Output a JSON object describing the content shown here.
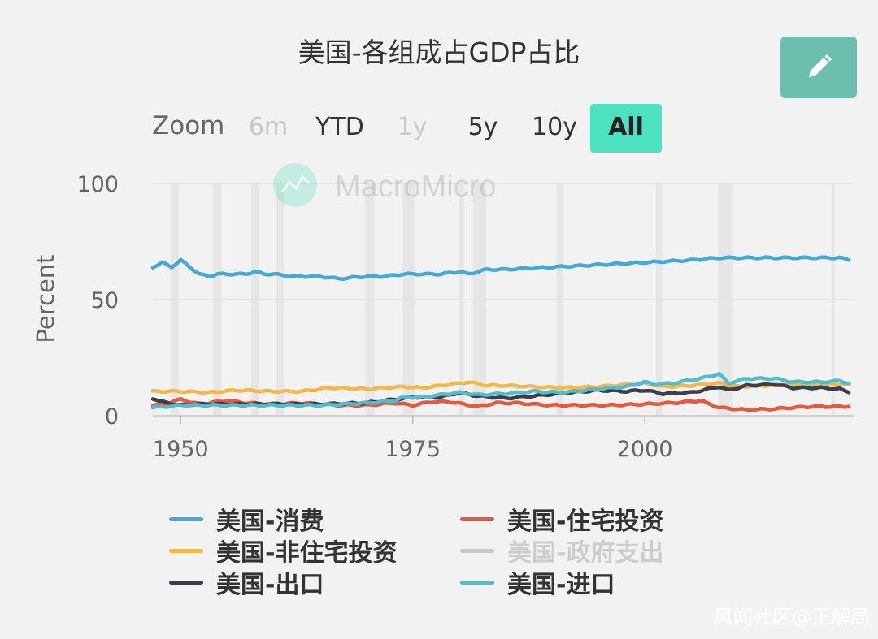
{
  "header": {
    "title": "美国-各组成占GDP占比"
  },
  "toolbar": {
    "edit_icon": "pencil-icon",
    "edit_color": "#6cbfae"
  },
  "zoom": {
    "label": "Zoom",
    "buttons": [
      {
        "label": "6m",
        "state": "disabled"
      },
      {
        "label": "YTD",
        "state": "enabled"
      },
      {
        "label": "1y",
        "state": "disabled"
      },
      {
        "label": "5y",
        "state": "enabled"
      },
      {
        "label": "10y",
        "state": "enabled"
      },
      {
        "label": "All",
        "state": "active"
      }
    ]
  },
  "watermark": {
    "text": "MacroMicro",
    "icon": "macromicro-logo-icon"
  },
  "footer": {
    "credit": "风闻社区@正解局"
  },
  "chart_data": {
    "type": "line",
    "title": "美国-各组成占GDP占比",
    "ylabel": "Percent",
    "xlabel": "",
    "ylim": [
      0,
      100
    ],
    "yticks": [
      "0",
      "50",
      "100"
    ],
    "xlim": [
      1947,
      2022.5
    ],
    "xticks": [
      "1950",
      "1975",
      "2000"
    ],
    "recession_shading": true,
    "legend_position": "bottom",
    "series": [
      {
        "name": "美国-消费",
        "color": "#45a9d6",
        "visible": true,
        "points": [
          [
            1947,
            64
          ],
          [
            1948,
            66
          ],
          [
            1949,
            64
          ],
          [
            1950,
            67
          ],
          [
            1951,
            64
          ],
          [
            1952,
            61
          ],
          [
            1953,
            60
          ],
          [
            1954,
            61
          ],
          [
            1955,
            61
          ],
          [
            1957,
            61
          ],
          [
            1958,
            62
          ],
          [
            1959,
            61
          ],
          [
            1960,
            61
          ],
          [
            1962,
            60
          ],
          [
            1965,
            60
          ],
          [
            1967,
            59
          ],
          [
            1970,
            60
          ],
          [
            1972,
            60
          ],
          [
            1974,
            61
          ],
          [
            1976,
            61
          ],
          [
            1978,
            61
          ],
          [
            1980,
            62
          ],
          [
            1981,
            61
          ],
          [
            1983,
            63
          ],
          [
            1985,
            63
          ],
          [
            1990,
            64
          ],
          [
            1995,
            65
          ],
          [
            2000,
            66
          ],
          [
            2005,
            67
          ],
          [
            2008,
            68
          ],
          [
            2010,
            68
          ],
          [
            2012,
            68
          ],
          [
            2015,
            68
          ],
          [
            2018,
            68
          ],
          [
            2021,
            68
          ],
          [
            2022,
            67
          ]
        ]
      },
      {
        "name": "美国-住宅投资",
        "color": "#e55a3f",
        "visible": true,
        "points": [
          [
            1947,
            4.5
          ],
          [
            1948,
            5
          ],
          [
            1950,
            7
          ],
          [
            1952,
            5
          ],
          [
            1955,
            6.5
          ],
          [
            1957,
            5.5
          ],
          [
            1960,
            5
          ],
          [
            1963,
            5.5
          ],
          [
            1967,
            4.5
          ],
          [
            1970,
            4.5
          ],
          [
            1973,
            5.5
          ],
          [
            1975,
            4.5
          ],
          [
            1977,
            6
          ],
          [
            1979,
            6
          ],
          [
            1982,
            4
          ],
          [
            1984,
            5.5
          ],
          [
            1986,
            5.5
          ],
          [
            1990,
            4.5
          ],
          [
            1993,
            4.5
          ],
          [
            1996,
            4.5
          ],
          [
            2000,
            5
          ],
          [
            2003,
            5.5
          ],
          [
            2006,
            6.5
          ],
          [
            2008,
            3.5
          ],
          [
            2011,
            2.5
          ],
          [
            2014,
            3
          ],
          [
            2018,
            4
          ],
          [
            2022,
            4
          ]
        ]
      },
      {
        "name": "美国-非住宅投资",
        "color": "#f2b94a",
        "visible": true,
        "points": [
          [
            1947,
            10.5
          ],
          [
            1950,
            10.5
          ],
          [
            1953,
            10
          ],
          [
            1956,
            11
          ],
          [
            1960,
            10.5
          ],
          [
            1963,
            10.5
          ],
          [
            1966,
            12
          ],
          [
            1970,
            11.5
          ],
          [
            1974,
            12.5
          ],
          [
            1976,
            12
          ],
          [
            1978,
            13
          ],
          [
            1980,
            14
          ],
          [
            1981,
            14.5
          ],
          [
            1983,
            13
          ],
          [
            1985,
            13
          ],
          [
            1988,
            12.5
          ],
          [
            1991,
            12
          ],
          [
            1995,
            12.5
          ],
          [
            2000,
            14
          ],
          [
            2002,
            12.5
          ],
          [
            2005,
            13
          ],
          [
            2008,
            14
          ],
          [
            2010,
            12.5
          ],
          [
            2013,
            13
          ],
          [
            2015,
            13.5
          ],
          [
            2019,
            13.5
          ],
          [
            2022,
            13.5
          ]
        ]
      },
      {
        "name": "美国-政府支出",
        "color": "#c8c8c8",
        "visible": false,
        "points": []
      },
      {
        "name": "美国-出口",
        "color": "#3b3f4d",
        "visible": true,
        "points": [
          [
            1947,
            7.5
          ],
          [
            1948,
            6
          ],
          [
            1950,
            4.5
          ],
          [
            1952,
            5
          ],
          [
            1955,
            5
          ],
          [
            1960,
            5
          ],
          [
            1965,
            5
          ],
          [
            1970,
            5.5
          ],
          [
            1973,
            7
          ],
          [
            1975,
            8
          ],
          [
            1978,
            8
          ],
          [
            1980,
            10
          ],
          [
            1982,
            8.5
          ],
          [
            1985,
            7.5
          ],
          [
            1988,
            8.5
          ],
          [
            1992,
            10
          ],
          [
            1995,
            11
          ],
          [
            1998,
            10.5
          ],
          [
            2000,
            11
          ],
          [
            2002,
            9.5
          ],
          [
            2005,
            10
          ],
          [
            2008,
            12.5
          ],
          [
            2009,
            11
          ],
          [
            2011,
            13
          ],
          [
            2014,
            13.5
          ],
          [
            2016,
            12
          ],
          [
            2019,
            12
          ],
          [
            2021,
            11.5
          ],
          [
            2022,
            10
          ]
        ]
      },
      {
        "name": "美国-进口",
        "color": "#52bccd",
        "visible": true,
        "points": [
          [
            1947,
            3.5
          ],
          [
            1950,
            4.5
          ],
          [
            1955,
            4.5
          ],
          [
            1960,
            4.5
          ],
          [
            1965,
            4.5
          ],
          [
            1970,
            5.5
          ],
          [
            1973,
            6.5
          ],
          [
            1974,
            8
          ],
          [
            1976,
            8
          ],
          [
            1978,
            9
          ],
          [
            1980,
            10
          ],
          [
            1982,
            9
          ],
          [
            1985,
            9.5
          ],
          [
            1988,
            10.5
          ],
          [
            1991,
            10
          ],
          [
            1995,
            11.5
          ],
          [
            1998,
            12.5
          ],
          [
            2000,
            14.5
          ],
          [
            2001,
            13.5
          ],
          [
            2003,
            14
          ],
          [
            2006,
            16
          ],
          [
            2008,
            18
          ],
          [
            2009,
            14
          ],
          [
            2011,
            16
          ],
          [
            2014,
            16
          ],
          [
            2016,
            14.5
          ],
          [
            2019,
            14.5
          ],
          [
            2021,
            15
          ],
          [
            2022,
            14
          ]
        ]
      }
    ]
  }
}
